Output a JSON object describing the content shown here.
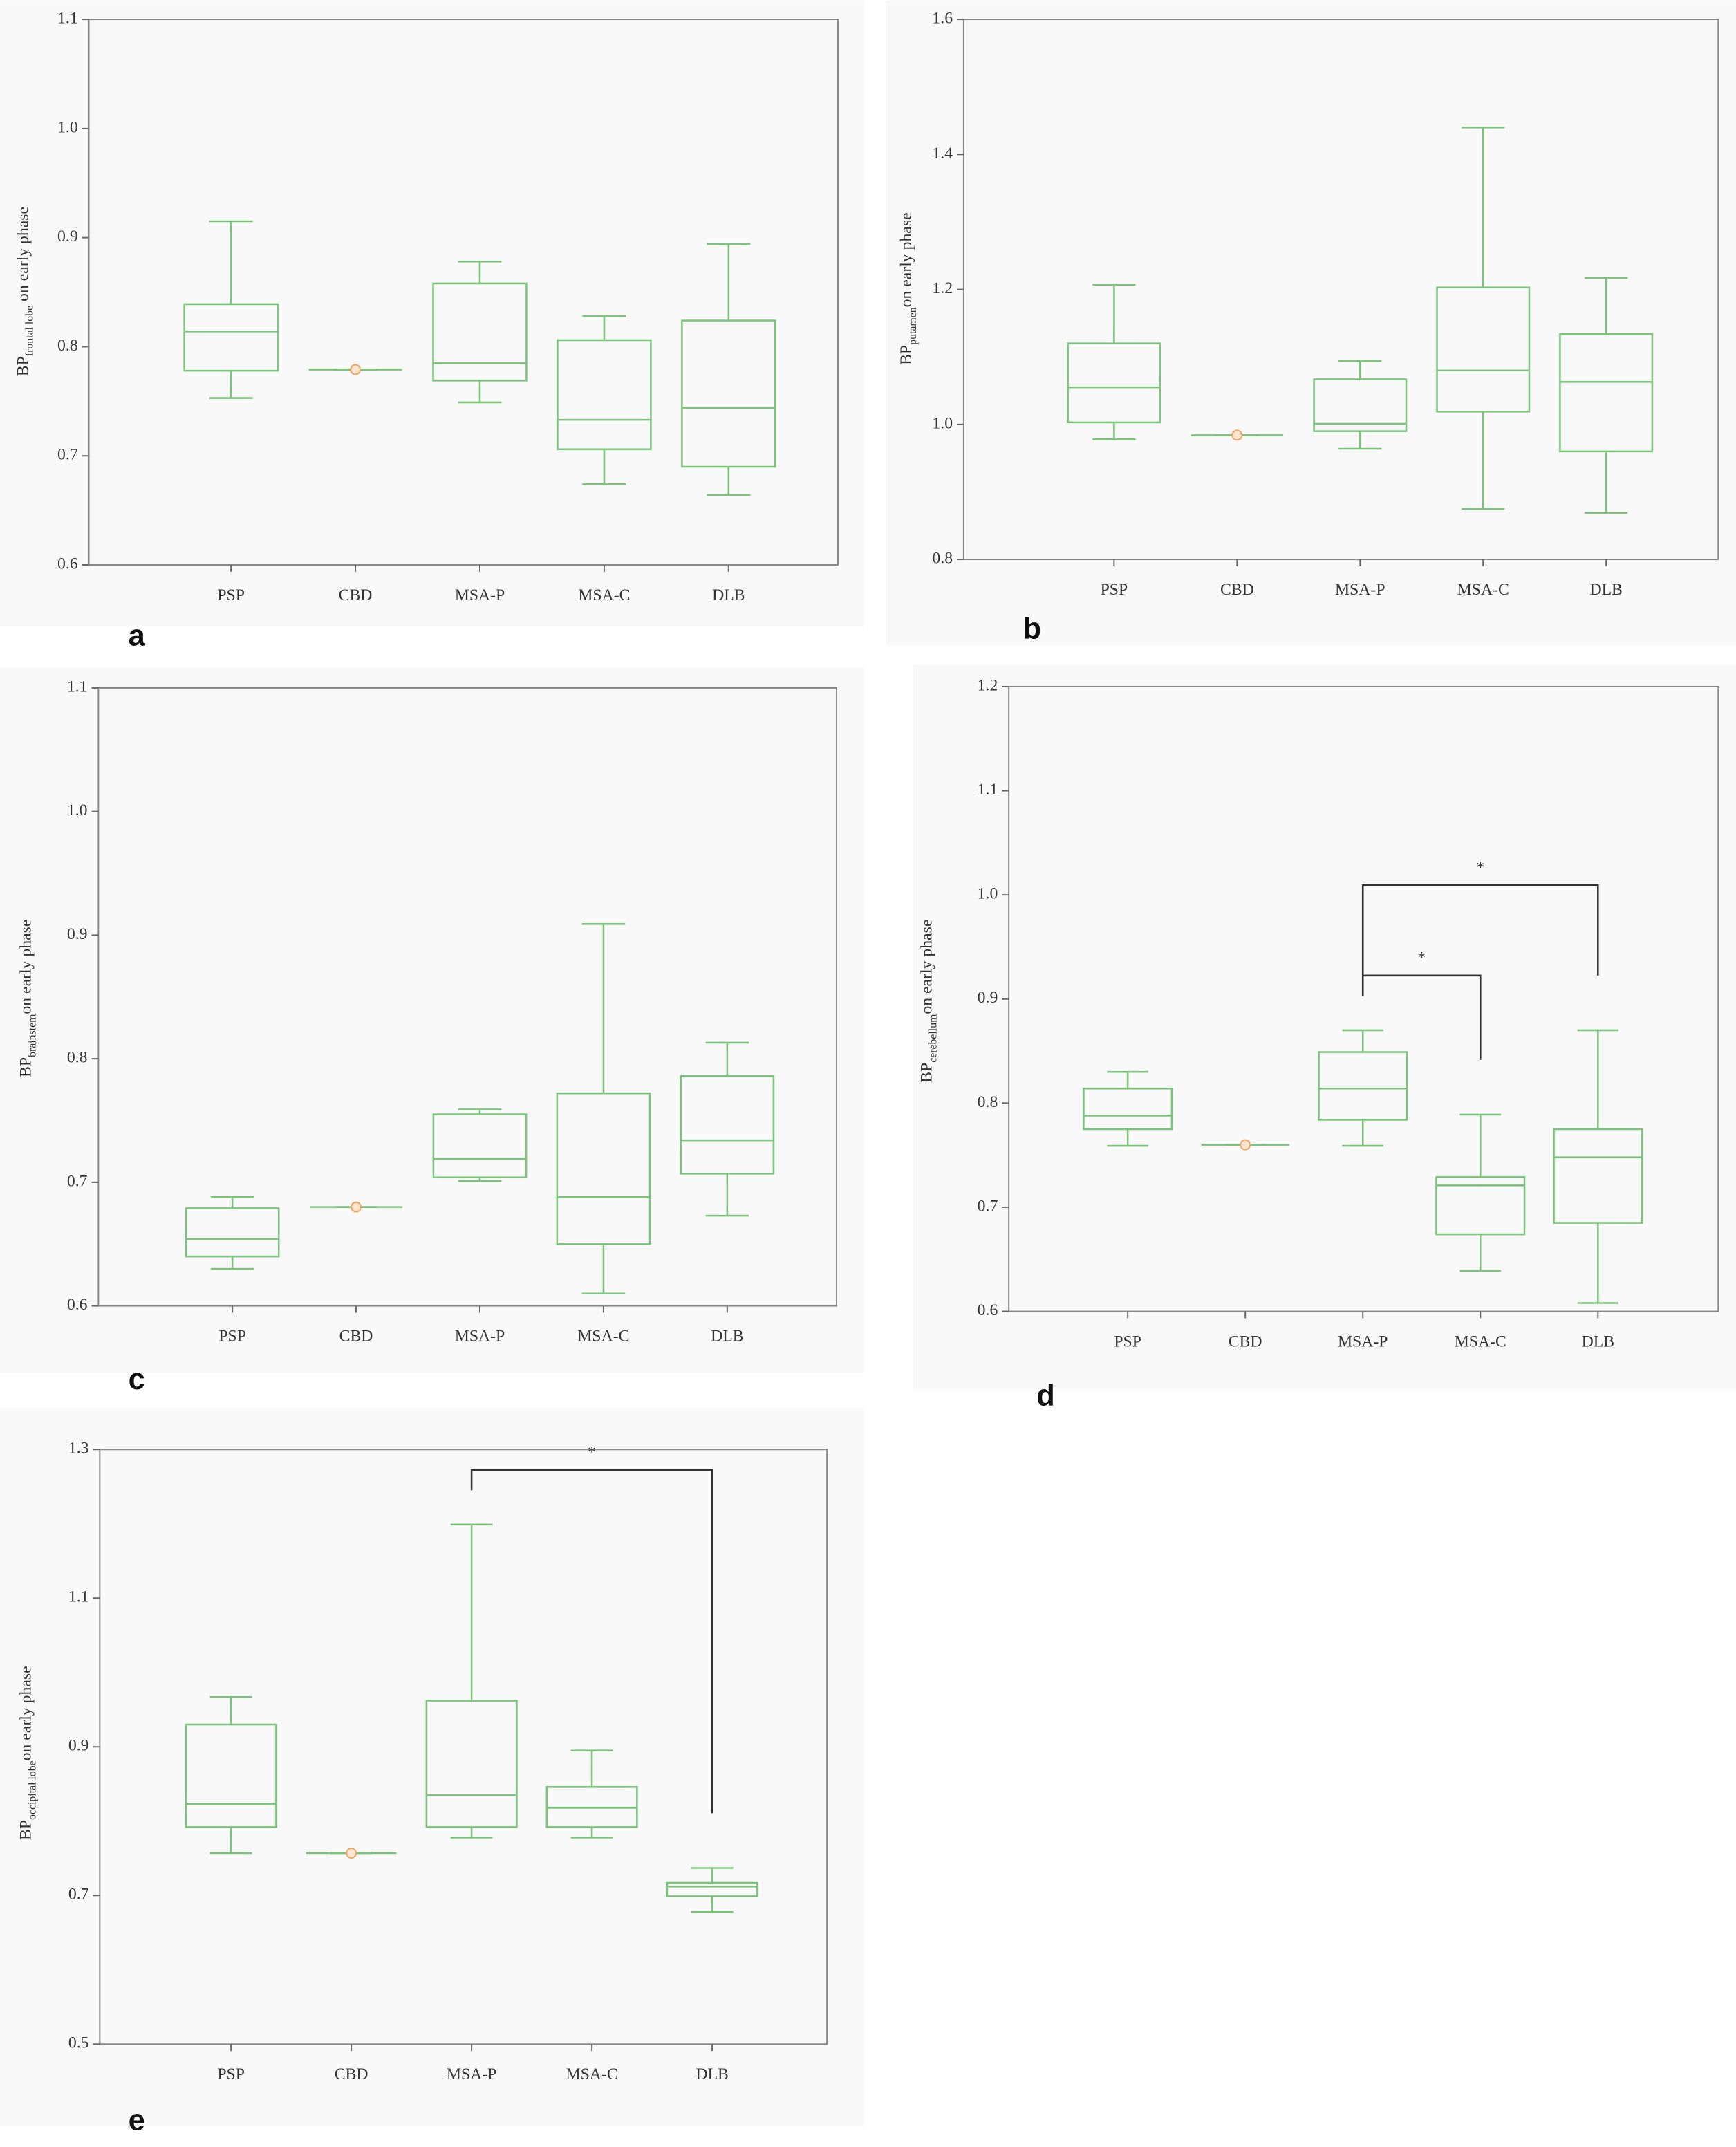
{
  "chart_data": [
    {
      "type": "box",
      "panel_label": "a",
      "ylabel": {
        "main": "BP",
        "sub": "frontal lobe",
        "rest": " on early phase"
      },
      "categories": [
        "PSP",
        "CBD",
        "MSA-P",
        "MSA-C",
        "DLB"
      ],
      "boxes": [
        {
          "min": 0.753,
          "q1": 0.778,
          "median": 0.814,
          "q3": 0.839,
          "max": 0.915
        },
        {
          "min": 0.779,
          "q1": 0.779,
          "median": 0.779,
          "q3": 0.779,
          "max": 0.779
        },
        {
          "min": 0.749,
          "q1": 0.769,
          "median": 0.785,
          "q3": 0.858,
          "max": 0.878
        },
        {
          "min": 0.674,
          "q1": 0.706,
          "median": 0.733,
          "q3": 0.806,
          "max": 0.828
        },
        {
          "min": 0.664,
          "q1": 0.69,
          "median": 0.744,
          "q3": 0.824,
          "max": 0.894
        }
      ],
      "color": "#7cc47c",
      "ylim": [
        0.6,
        1.1
      ],
      "yticks": [
        0.6,
        0.7,
        0.8,
        0.9,
        {
          "value": 1,
          "label": "1.0"
        },
        1.1
      ]
    },
    {
      "type": "box",
      "panel_label": "b",
      "ylabel": {
        "main": "BP",
        "sub": "putamen",
        "rest": "on early phase"
      },
      "categories": [
        "PSP",
        "CBD",
        "MSA-P",
        "MSA-C",
        "DLB"
      ],
      "boxes": [
        {
          "min": 0.978,
          "q1": 1.003,
          "median": 1.055,
          "q3": 1.12,
          "max": 1.207
        },
        {
          "min": 0.984,
          "q1": 0.984,
          "median": 0.984,
          "q3": 0.984,
          "max": 0.984
        },
        {
          "min": 0.964,
          "q1": 0.99,
          "median": 1.001,
          "q3": 1.067,
          "max": 1.094
        },
        {
          "min": 0.875,
          "q1": 1.019,
          "median": 1.08,
          "q3": 1.203,
          "max": 1.44
        },
        {
          "min": 0.869,
          "q1": 0.96,
          "median": 1.063,
          "q3": 1.134,
          "max": 1.217
        }
      ],
      "color": "#7cc47c",
      "ylim": [
        0.8,
        1.6
      ],
      "yticks": [
        0.8,
        {
          "value": 1,
          "label": "1.0"
        },
        1.2,
        1.4,
        1.6
      ]
    },
    {
      "type": "box",
      "panel_label": "c",
      "ylabel": {
        "main": "BP",
        "sub": "brainstem",
        "rest": "on early phase"
      },
      "categories": [
        "PSP",
        "CBD",
        "MSA-P",
        "MSA-C",
        "DLB"
      ],
      "boxes": [
        {
          "min": 0.63,
          "q1": 0.64,
          "median": 0.654,
          "q3": 0.679,
          "max": 0.688
        },
        {
          "min": 0.68,
          "q1": 0.68,
          "median": 0.68,
          "q3": 0.68,
          "max": 0.68
        },
        {
          "min": 0.701,
          "q1": 0.704,
          "median": 0.719,
          "q3": 0.755,
          "max": 0.759
        },
        {
          "min": 0.61,
          "q1": 0.65,
          "median": 0.688,
          "q3": 0.772,
          "max": 0.909
        },
        {
          "min": 0.673,
          "q1": 0.707,
          "median": 0.734,
          "q3": 0.786,
          "max": 0.813
        }
      ],
      "color": "#7cc47c",
      "ylim": [
        0.6,
        1.1
      ],
      "yticks": [
        0.6,
        0.7,
        0.8,
        0.9,
        {
          "value": 1,
          "label": "1.0"
        },
        1.1
      ]
    },
    {
      "type": "box",
      "panel_label": "d",
      "ylabel": {
        "main": "BP",
        "sub": "cerebellum",
        "rest": "on early phase"
      },
      "categories": [
        "PSP",
        "CBD",
        "MSA-P",
        "MSA-C",
        "DLB"
      ],
      "boxes": [
        {
          "min": 0.759,
          "q1": 0.775,
          "median": 0.788,
          "q3": 0.814,
          "max": 0.83
        },
        {
          "min": 0.76,
          "q1": 0.76,
          "median": 0.76,
          "q3": 0.76,
          "max": 0.76
        },
        {
          "min": 0.759,
          "q1": 0.784,
          "median": 0.814,
          "q3": 0.849,
          "max": 0.87
        },
        {
          "min": 0.639,
          "q1": 0.674,
          "median": 0.721,
          "q3": 0.729,
          "max": 0.789
        },
        {
          "min": 0.608,
          "q1": 0.685,
          "median": 0.748,
          "q3": 0.775,
          "max": 0.87
        }
      ],
      "color": "#7cc47c",
      "ylim": [
        0.6,
        1.2
      ],
      "yticks": [
        0.6,
        0.7,
        0.8,
        0.9,
        {
          "value": 1,
          "label": "1.0"
        },
        1.1,
        1.2
      ],
      "annotations": [
        {
          "text": "*",
          "groups": [
            "MSA-P",
            "DLB"
          ]
        },
        {
          "text": "*",
          "groups": [
            "MSA-P",
            "MSA-C"
          ]
        }
      ]
    },
    {
      "type": "box",
      "panel_label": "e",
      "ylabel": {
        "main": "BP",
        "sub": "occipital lobe",
        "rest": "on early phase"
      },
      "categories": [
        "PSP",
        "CBD",
        "MSA-P",
        "MSA-C",
        "DLB"
      ],
      "boxes": [
        {
          "min": 0.757,
          "q1": 0.792,
          "median": 0.823,
          "q3": 0.93,
          "max": 0.967
        },
        {
          "min": 0.757,
          "q1": 0.757,
          "median": 0.757,
          "q3": 0.757,
          "max": 0.757
        },
        {
          "min": 0.778,
          "q1": 0.792,
          "median": 0.835,
          "q3": 0.962,
          "max": 1.199
        },
        {
          "min": 0.778,
          "q1": 0.792,
          "median": 0.818,
          "q3": 0.846,
          "max": 0.895
        },
        {
          "min": 0.678,
          "q1": 0.699,
          "median": 0.712,
          "q3": 0.717,
          "max": 0.737
        }
      ],
      "color": "#7cc47c",
      "ylim": [
        0.5,
        1.3
      ],
      "yticks": [
        0.5,
        0.7,
        0.9,
        1.1,
        1.3
      ],
      "annotations": [
        {
          "text": "*",
          "groups": [
            "MSA-P",
            "DLB"
          ]
        }
      ]
    }
  ]
}
